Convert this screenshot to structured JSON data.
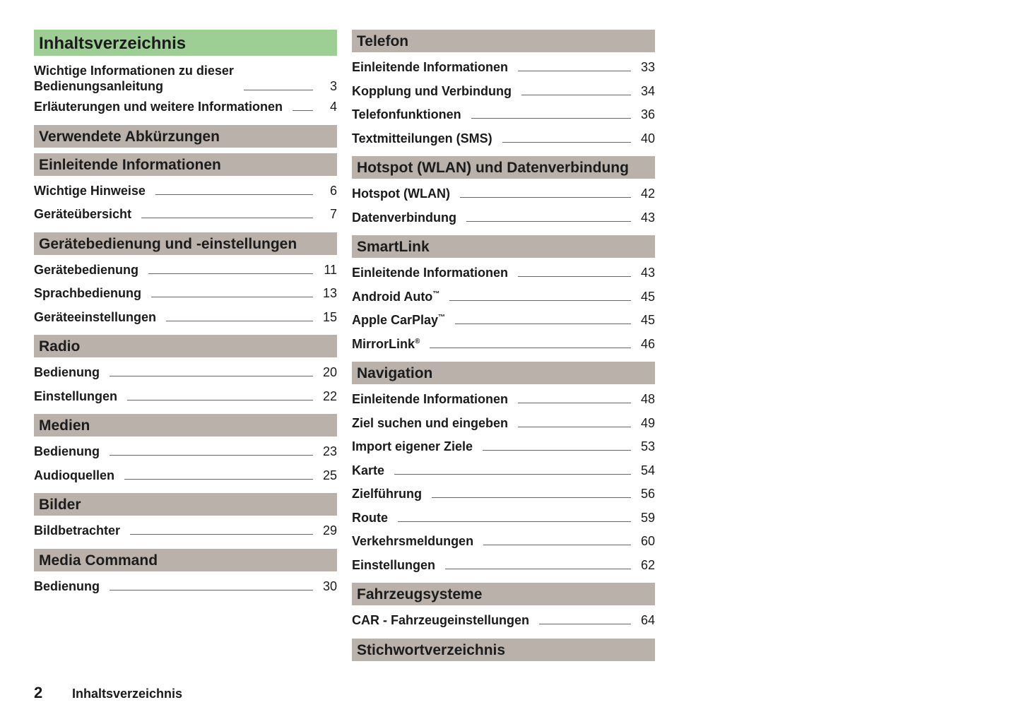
{
  "left": [
    {
      "heading": "Inhaltsverzeichnis",
      "main": true,
      "entries": [
        {
          "title": "Wichtige Informationen zu dieser\nBedienungsanleitung",
          "page": "3"
        },
        {
          "title": "Erläuterungen und weitere Informationen",
          "page": "4"
        }
      ]
    },
    {
      "heading": "Verwendete Abkürzungen",
      "entries": []
    },
    {
      "heading": "Einleitende Informationen",
      "entries": [
        {
          "title": "Wichtige Hinweise",
          "page": "6"
        },
        {
          "title": "Geräteübersicht",
          "page": "7"
        }
      ]
    },
    {
      "heading": "Gerätebedienung und -einstellungen",
      "entries": [
        {
          "title": "Gerätebedienung",
          "page": "11"
        },
        {
          "title": "Sprachbedienung",
          "page": "13"
        },
        {
          "title": "Geräteeinstellungen",
          "page": "15"
        }
      ]
    },
    {
      "heading": "Radio",
      "entries": [
        {
          "title": "Bedienung",
          "page": "20"
        },
        {
          "title": "Einstellungen",
          "page": "22"
        }
      ]
    },
    {
      "heading": "Medien",
      "entries": [
        {
          "title": "Bedienung",
          "page": "23"
        },
        {
          "title": "Audioquellen",
          "page": "25"
        }
      ]
    },
    {
      "heading": "Bilder",
      "entries": [
        {
          "title": "Bildbetrachter",
          "page": "29"
        }
      ]
    },
    {
      "heading": "Media Command",
      "entries": [
        {
          "title": "Bedienung",
          "page": "30"
        }
      ]
    }
  ],
  "right": [
    {
      "heading": "Telefon",
      "entries": [
        {
          "title": "Einleitende Informationen",
          "page": "33"
        },
        {
          "title": "Kopplung und Verbindung",
          "page": "34"
        },
        {
          "title": "Telefonfunktionen",
          "page": "36"
        },
        {
          "title": "Textmitteilungen (SMS)",
          "page": "40"
        }
      ]
    },
    {
      "heading": "Hotspot (WLAN) und Datenverbindung",
      "entries": [
        {
          "title": "Hotspot (WLAN)",
          "page": "42"
        },
        {
          "title": "Datenverbindung",
          "page": "43"
        }
      ]
    },
    {
      "heading": "SmartLink",
      "entries": [
        {
          "title": "Einleitende Informationen",
          "page": "43"
        },
        {
          "title": "Android Auto",
          "sup": "™",
          "page": "45"
        },
        {
          "title": "Apple CarPlay",
          "sup": "™",
          "page": "45"
        },
        {
          "title": "MirrorLink",
          "sup": "®",
          "page": "46"
        }
      ]
    },
    {
      "heading": "Navigation",
      "entries": [
        {
          "title": "Einleitende Informationen",
          "page": "48"
        },
        {
          "title": "Ziel suchen und eingeben",
          "page": "49"
        },
        {
          "title": "Import eigener Ziele",
          "page": "53"
        },
        {
          "title": "Karte",
          "page": "54"
        },
        {
          "title": "Zielführung",
          "page": "56"
        },
        {
          "title": "Route",
          "page": "59"
        },
        {
          "title": "Verkehrsmeldungen",
          "page": "60"
        },
        {
          "title": "Einstellungen",
          "page": "62"
        }
      ]
    },
    {
      "heading": "Fahrzeugsysteme",
      "entries": [
        {
          "title": "CAR - Fahrzeugeinstellungen",
          "page": "64"
        }
      ]
    },
    {
      "heading": "Stichwortverzeichnis",
      "entries": []
    }
  ],
  "footer": {
    "page_number": "2",
    "title": "Inhaltsverzeichnis"
  },
  "colors": {
    "main_heading": "#9dcf95",
    "section_heading": "#b9b1aa"
  }
}
